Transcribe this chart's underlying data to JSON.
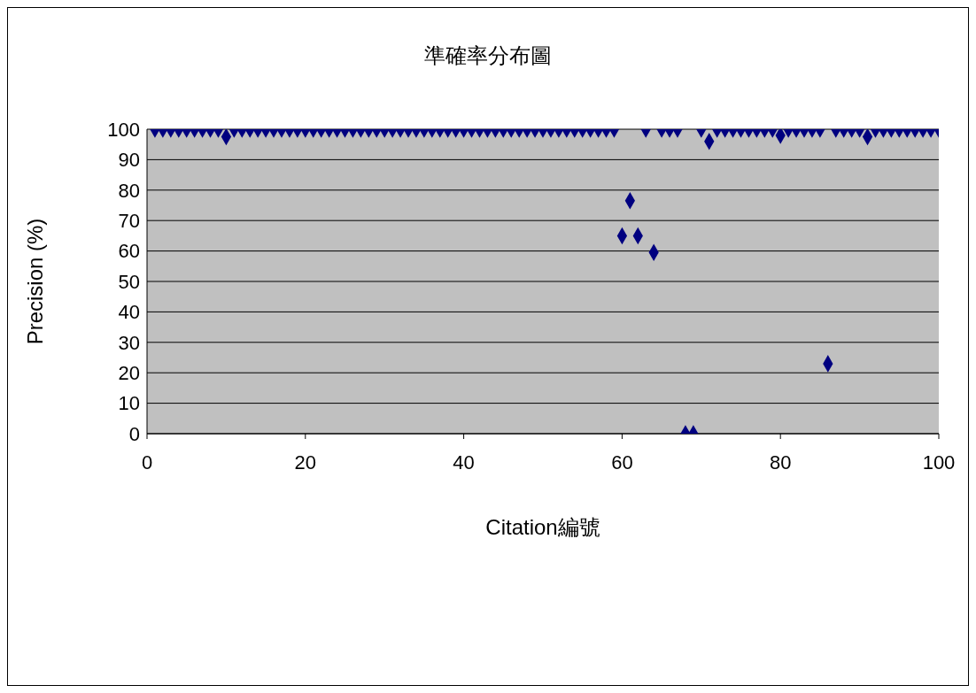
{
  "chart_data": {
    "type": "scatter",
    "title": "準確率分布圖",
    "xlabel": "Citation編號",
    "ylabel": "Precision (%)",
    "x": [
      1,
      2,
      3,
      4,
      5,
      6,
      7,
      8,
      9,
      10,
      11,
      12,
      13,
      14,
      15,
      16,
      17,
      18,
      19,
      20,
      21,
      22,
      23,
      24,
      25,
      26,
      27,
      28,
      29,
      30,
      31,
      32,
      33,
      34,
      35,
      36,
      37,
      38,
      39,
      40,
      41,
      42,
      43,
      44,
      45,
      46,
      47,
      48,
      49,
      50,
      51,
      52,
      53,
      54,
      55,
      56,
      57,
      58,
      59,
      60,
      61,
      62,
      63,
      64,
      65,
      66,
      67,
      68,
      69,
      70,
      71,
      72,
      73,
      74,
      75,
      76,
      77,
      78,
      79,
      80,
      81,
      82,
      83,
      84,
      85,
      86,
      87,
      88,
      89,
      90,
      91,
      92,
      93,
      94,
      95,
      96,
      97,
      98,
      99,
      100
    ],
    "series": [
      {
        "color": "#000080",
        "values": [
          100,
          100,
          100,
          100,
          100,
          100,
          100,
          100,
          100,
          97.5,
          100,
          100,
          100,
          100,
          100,
          100,
          100,
          100,
          100,
          100,
          100,
          100,
          100,
          100,
          100,
          100,
          100,
          100,
          100,
          100,
          100,
          100,
          100,
          100,
          100,
          100,
          100,
          100,
          100,
          100,
          100,
          100,
          100,
          100,
          100,
          100,
          100,
          100,
          100,
          100,
          100,
          100,
          100,
          100,
          100,
          100,
          100,
          100,
          100,
          65,
          76.5,
          65,
          100,
          59.5,
          100,
          100,
          100,
          0,
          0,
          100,
          96,
          100,
          100,
          100,
          100,
          100,
          100,
          100,
          100,
          98,
          100,
          100,
          100,
          100,
          100,
          23,
          100,
          100,
          100,
          100,
          97.5,
          100,
          100,
          100,
          100,
          100,
          100,
          100,
          100,
          100
        ]
      }
    ],
    "xlim": [
      0,
      100
    ],
    "xticks": [
      0,
      20,
      40,
      60,
      80,
      100
    ],
    "ylim": [
      0,
      100
    ],
    "yticks": [
      0,
      10,
      20,
      30,
      40,
      50,
      60,
      70,
      80,
      90,
      100
    ],
    "grid": "y",
    "legend": false,
    "marker": "diamond"
  }
}
